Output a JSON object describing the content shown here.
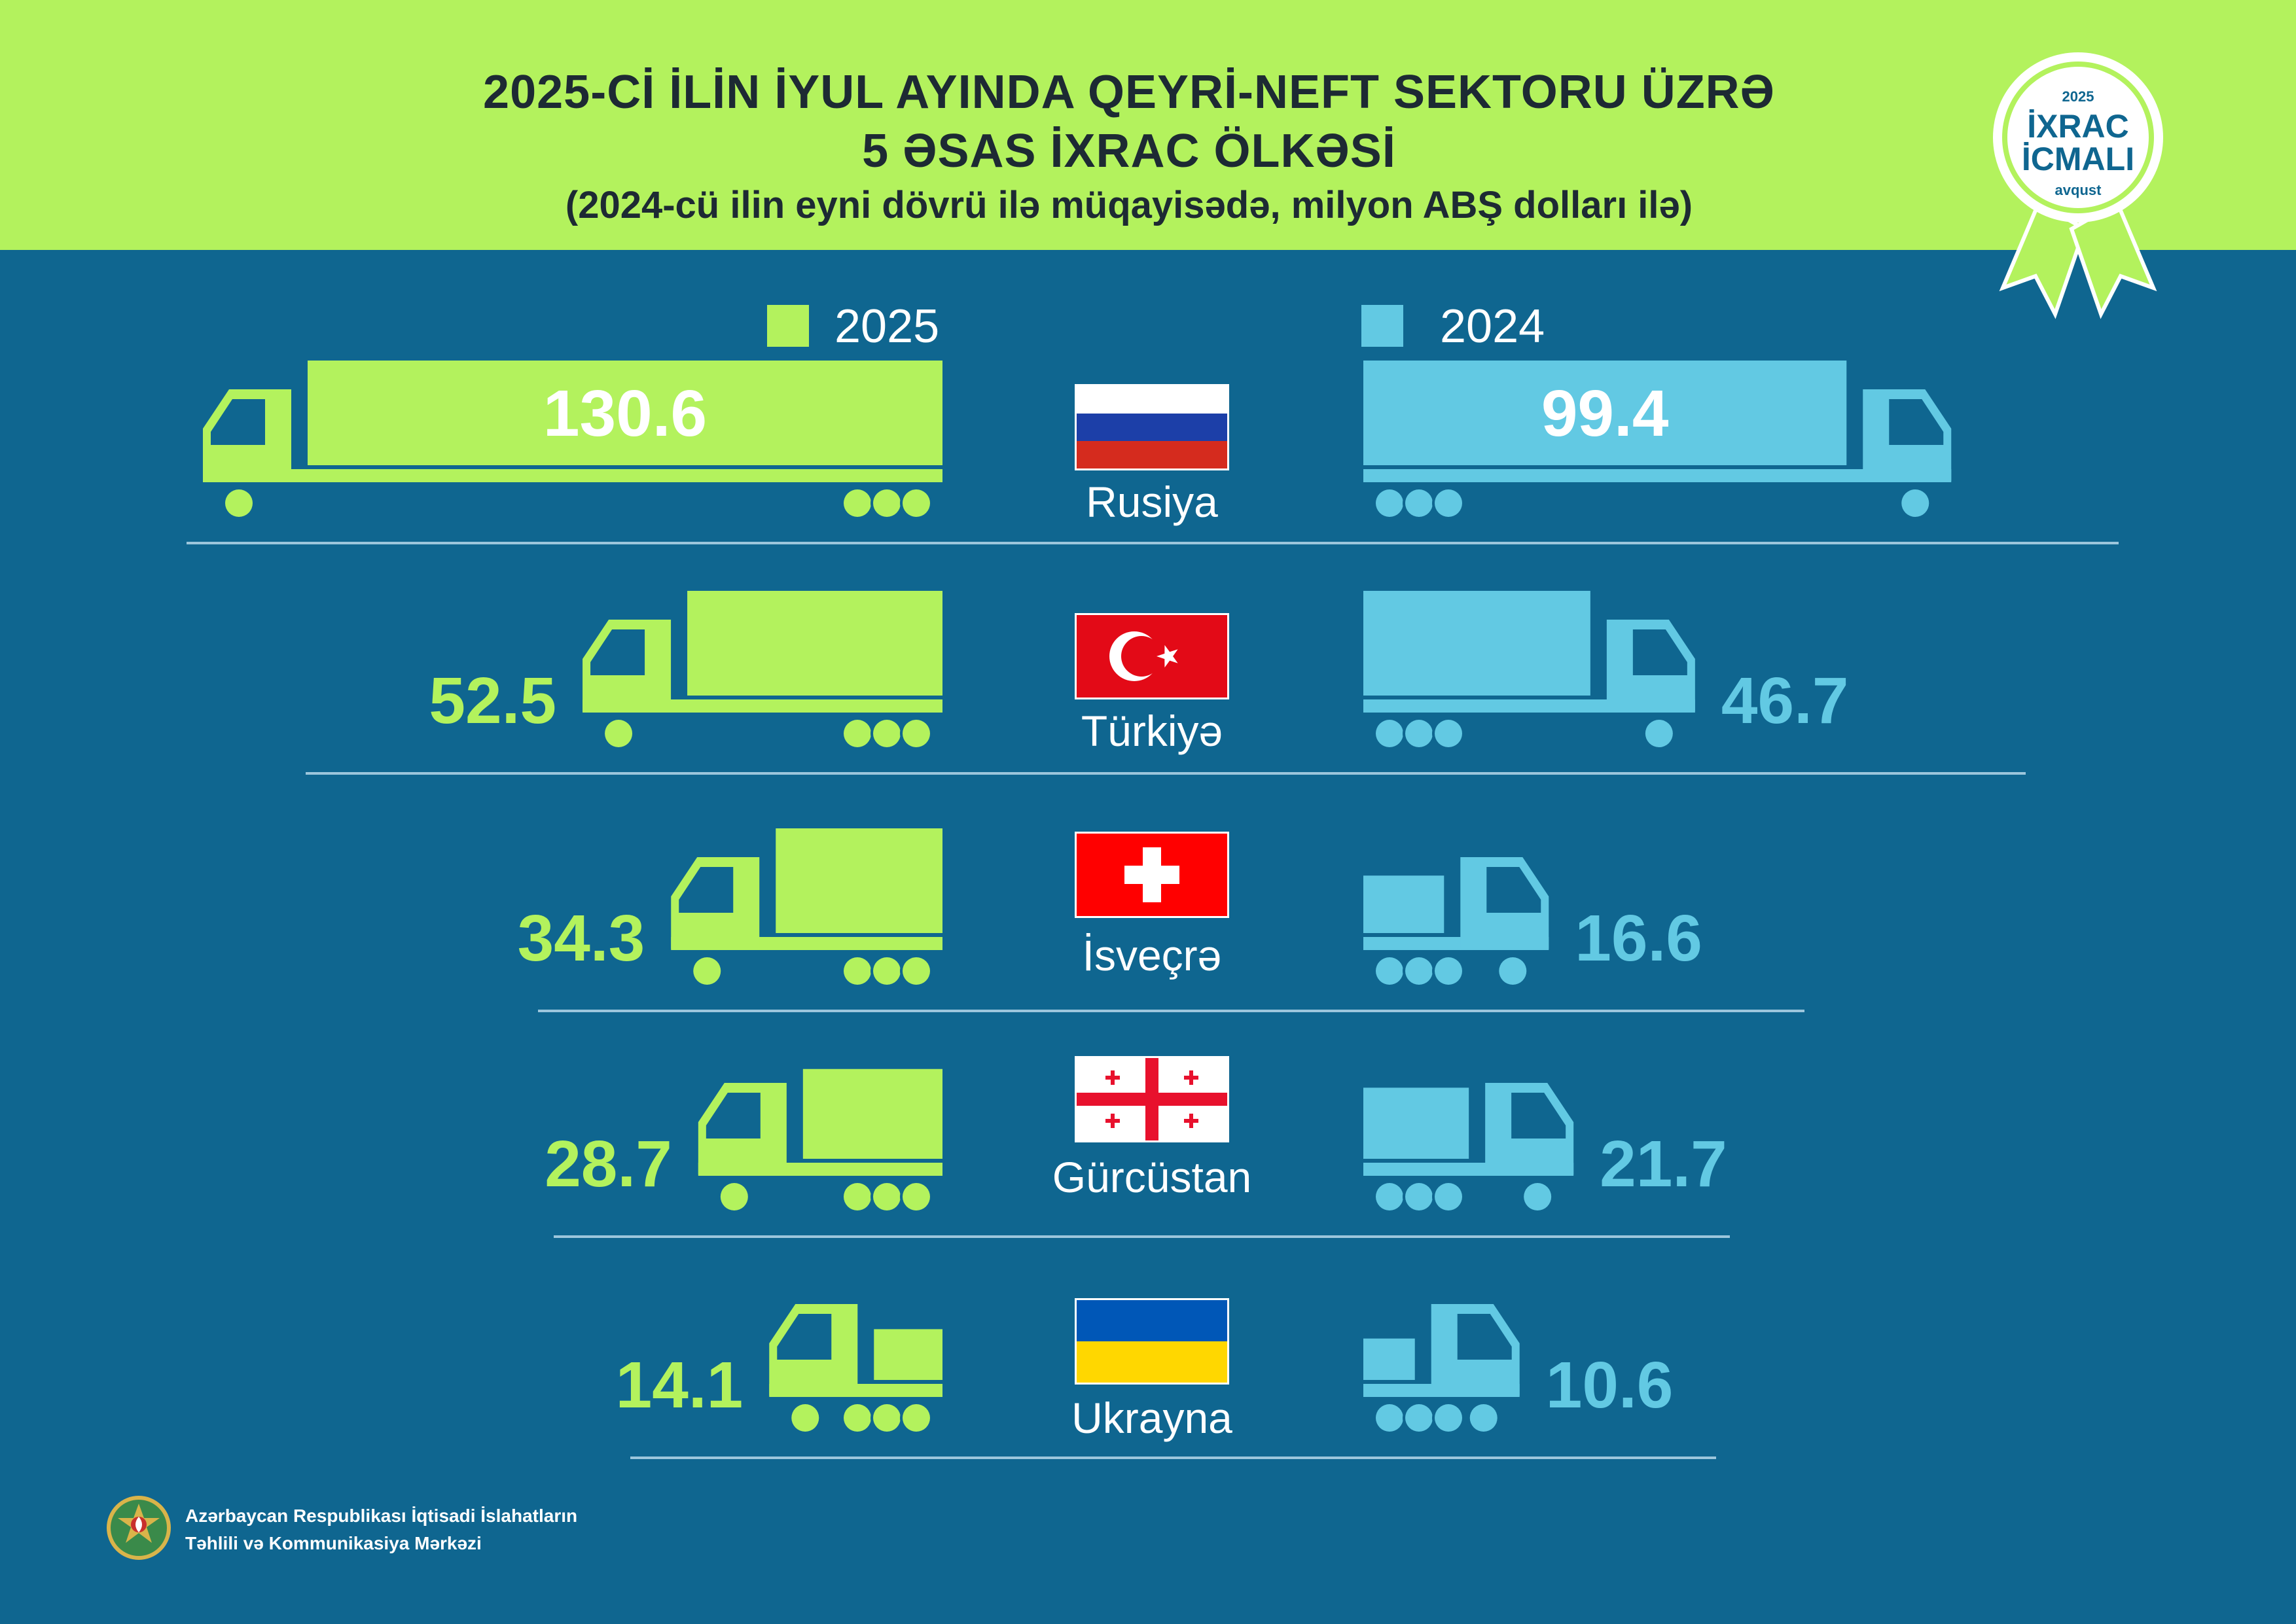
{
  "header": {
    "title_line1": "2025-Cİ İLİN İYUL AYINDA QEYRİ-NEFT SEKTORU ÜZRƏ",
    "title_line2": "5 ƏSAS İXRAC ÖLKƏSİ",
    "subtitle": "(2024-cü ilin eyni dövrü ilə müqayisədə, milyon ABŞ dolları ilə)"
  },
  "badge": {
    "year": "2025",
    "line1": "İXRAC",
    "line2": "İCMALI",
    "month": "avqust"
  },
  "legend": {
    "label_2025": "2025",
    "label_2024": "2024"
  },
  "colors": {
    "series_2025": "#b3f25d",
    "series_2024": "#62c9e3",
    "background": "#0f6690",
    "header": "#b3f25d",
    "title_text": "#1d2a33"
  },
  "footer": {
    "org_line1": "Azərbaycan Respublikası İqtisadi İslahatların",
    "org_line2": "Təhlili və Kommunikasiya Mərkəzi"
  },
  "chart_data": {
    "type": "bar",
    "categories": [
      "Rusiya",
      "Türkiyə",
      "İsveçrə",
      "Gürcüstan",
      "Ukrayna"
    ],
    "series": [
      {
        "name": "2025",
        "values": [
          130.6,
          52.5,
          34.3,
          28.7,
          14.1
        ]
      },
      {
        "name": "2024",
        "values": [
          99.4,
          46.7,
          16.6,
          21.7,
          10.6
        ]
      }
    ],
    "value_labels": {
      "2025": [
        "130.6",
        "52.5",
        "34.3",
        "28.7",
        "14.1"
      ],
      "2024": [
        "99.4",
        "46.7",
        "16.6",
        "21.7",
        "10.6"
      ]
    },
    "flags": [
      "russia-flag",
      "turkey-flag",
      "switzerland-flag",
      "georgia-flag",
      "ukraine-flag"
    ],
    "legend_position": "top-center",
    "grid": false
  }
}
